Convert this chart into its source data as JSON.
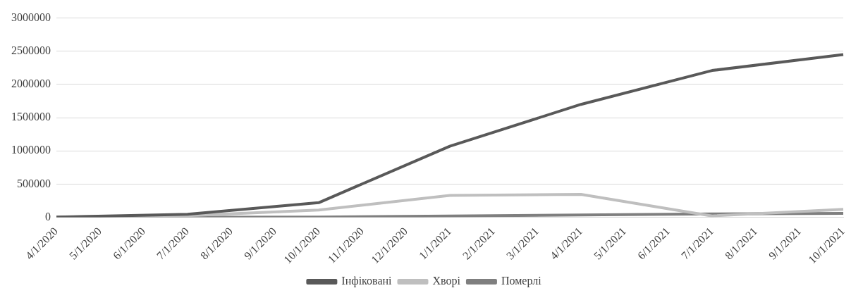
{
  "chart_data": {
    "type": "line",
    "categories": [
      "4/1/2020",
      "5/1/2020",
      "6/1/2020",
      "7/1/2020",
      "8/1/2020",
      "9/1/2020",
      "10/1/2020",
      "11/1/2020",
      "12/1/2020",
      "1/1/2021",
      "2/1/2021",
      "3/1/2021",
      "4/1/2021",
      "5/1/2021",
      "6/1/2021",
      "7/1/2021",
      "8/1/2021",
      "9/1/2021",
      "10/1/2021"
    ],
    "series": [
      {
        "name": "Інфіковані",
        "color": "#595959",
        "values": [
          2000,
          null,
          null,
          45000,
          null,
          null,
          220000,
          null,
          null,
          1070000,
          null,
          null,
          1700000,
          null,
          null,
          2210000,
          null,
          null,
          2450000
        ]
      },
      {
        "name": "Хворі",
        "color": "#bfbfbf",
        "values": [
          2000,
          null,
          null,
          25000,
          null,
          null,
          110000,
          null,
          null,
          330000,
          null,
          null,
          345000,
          null,
          null,
          20000,
          null,
          null,
          120000
        ]
      },
      {
        "name": "Померлі",
        "color": "#7f7f7f",
        "values": [
          0,
          null,
          null,
          1000,
          null,
          null,
          4000,
          null,
          null,
          20000,
          null,
          null,
          35000,
          null,
          null,
          50000,
          null,
          null,
          60000
        ]
      }
    ],
    "ylim": [
      0,
      3000000
    ],
    "yticks": [
      0,
      500000,
      1000000,
      1500000,
      2000000,
      2500000,
      3000000
    ],
    "grid": "y",
    "legend": "bottom",
    "marker": "none",
    "line_style": "solid"
  }
}
